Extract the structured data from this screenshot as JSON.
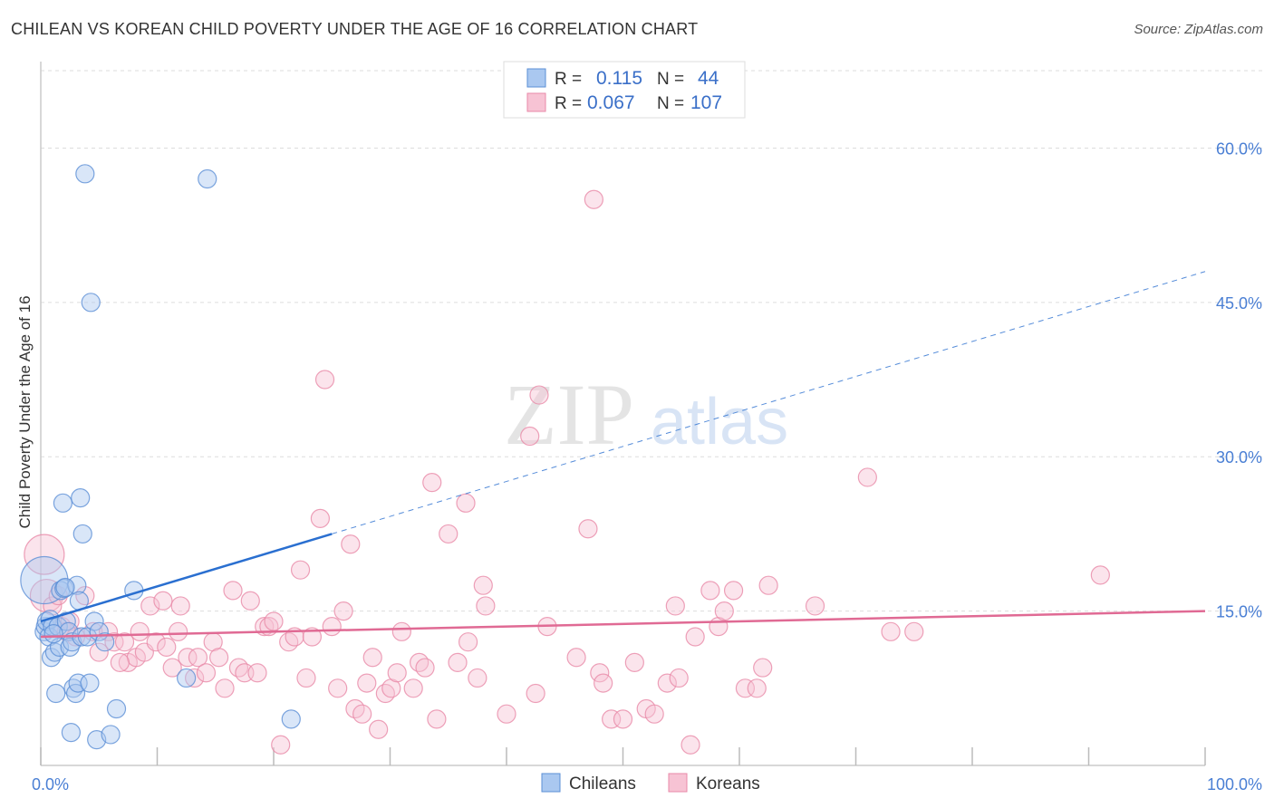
{
  "title": "CHILEAN VS KOREAN CHILD POVERTY UNDER THE AGE OF 16 CORRELATION CHART",
  "source": "Source: ZipAtlas.com",
  "watermark": {
    "left": "ZIP",
    "right": "atlas"
  },
  "colors": {
    "chileans_fill": "#aac8f0",
    "chileans_stroke": "#5b8fd6",
    "chileans_line": "#2a6fd0",
    "koreans_fill": "#f7c3d4",
    "koreans_stroke": "#e889a8",
    "koreans_line": "#e06a94",
    "grid": "#dddddd",
    "tick_label": "#4a7fd4"
  },
  "legend": {
    "rows": [
      {
        "r_label": "R =",
        "r_value": "0.115",
        "n_label": "N =",
        "n_value": "44"
      },
      {
        "r_label": "R =",
        "r_value": "0.067",
        "n_label": "N =",
        "n_value": "107"
      }
    ]
  },
  "bottom_legend": [
    "Chileans",
    "Koreans"
  ],
  "chart_data": {
    "type": "scatter",
    "title": "CHILEAN VS KOREAN CHILD POVERTY UNDER THE AGE OF 16 CORRELATION CHART",
    "xlabel": "",
    "ylabel": "Child Poverty Under the Age of 16",
    "xlim": [
      0,
      100
    ],
    "ylim": [
      0,
      64
    ],
    "x_tick_labels": [
      "0.0%",
      "100.0%"
    ],
    "y_ticks": [
      15,
      30,
      45,
      60
    ],
    "y_tick_labels": [
      "15.0%",
      "30.0%",
      "45.0%",
      "60.0%"
    ],
    "grid": "horizontal dashed",
    "legend_position": "top-center",
    "series": [
      {
        "name": "Chileans",
        "R": 0.115,
        "N": 44,
        "trend": {
          "x0": 0,
          "y0": 14.0,
          "x1": 25,
          "y1": 22.5,
          "dashed_to_x": 100,
          "dashed_to_y": 48.0
        },
        "points": [
          [
            0.3,
            18.0,
            26
          ],
          [
            0.3,
            13.0,
            10
          ],
          [
            0.4,
            13.5,
            10
          ],
          [
            0.5,
            14.0,
            10
          ],
          [
            0.7,
            12.5,
            10
          ],
          [
            0.8,
            14.2,
            10
          ],
          [
            0.9,
            10.5,
            10
          ],
          [
            1.0,
            13.5,
            10
          ],
          [
            1.2,
            11.0,
            10
          ],
          [
            1.3,
            7.0,
            10
          ],
          [
            1.5,
            13.5,
            10
          ],
          [
            1.6,
            11.5,
            10
          ],
          [
            1.7,
            17.0,
            10
          ],
          [
            1.9,
            25.5,
            10
          ],
          [
            2.0,
            17.2,
            10
          ],
          [
            2.2,
            14.0,
            10
          ],
          [
            2.4,
            13.0,
            10
          ],
          [
            2.5,
            11.5,
            10
          ],
          [
            2.6,
            3.2,
            10
          ],
          [
            2.7,
            12.0,
            10
          ],
          [
            2.8,
            7.5,
            10
          ],
          [
            3.0,
            7.0,
            10
          ],
          [
            3.1,
            17.5,
            10
          ],
          [
            3.2,
            8.0,
            10
          ],
          [
            3.3,
            16.0,
            10
          ],
          [
            3.4,
            26.0,
            10
          ],
          [
            3.5,
            12.5,
            10
          ],
          [
            3.6,
            22.5,
            10
          ],
          [
            3.8,
            57.5,
            10
          ],
          [
            4.0,
            12.5,
            10
          ],
          [
            4.2,
            8.0,
            10
          ],
          [
            4.3,
            45.0,
            10
          ],
          [
            4.6,
            14.0,
            10
          ],
          [
            4.8,
            2.5,
            10
          ],
          [
            5.0,
            13.0,
            10
          ],
          [
            5.5,
            12.0,
            10
          ],
          [
            6.0,
            3.0,
            10
          ],
          [
            6.5,
            5.5,
            10
          ],
          [
            8.0,
            17.0,
            10
          ],
          [
            12.5,
            8.5,
            10
          ],
          [
            14.3,
            57.0,
            10
          ],
          [
            21.5,
            4.5,
            10
          ],
          [
            1.1,
            12.8,
            10
          ],
          [
            2.1,
            17.3,
            10
          ]
        ]
      },
      {
        "name": "Koreans",
        "R": 0.067,
        "N": 107,
        "trend": {
          "x0": 0,
          "y0": 12.5,
          "x1": 100,
          "y1": 15.0
        },
        "points": [
          [
            0.3,
            20.5,
            22
          ],
          [
            0.5,
            16.5,
            18
          ],
          [
            1.0,
            15.5,
            10
          ],
          [
            1.5,
            16.5,
            10
          ],
          [
            1.8,
            13.5,
            10
          ],
          [
            2.5,
            14.0,
            10
          ],
          [
            3.0,
            12.5,
            10
          ],
          [
            3.8,
            16.5,
            10
          ],
          [
            4.5,
            13.0,
            10
          ],
          [
            5.0,
            11.0,
            10
          ],
          [
            5.8,
            13.0,
            10
          ],
          [
            6.3,
            12.0,
            10
          ],
          [
            7.2,
            12.0,
            10
          ],
          [
            7.5,
            10.0,
            10
          ],
          [
            8.2,
            10.5,
            10
          ],
          [
            8.5,
            13.0,
            10
          ],
          [
            8.9,
            11.0,
            10
          ],
          [
            9.4,
            15.5,
            10
          ],
          [
            9.9,
            12.0,
            10
          ],
          [
            10.5,
            16.0,
            10
          ],
          [
            10.8,
            11.5,
            10
          ],
          [
            11.3,
            9.5,
            10
          ],
          [
            11.8,
            13.0,
            10
          ],
          [
            12.0,
            15.5,
            10
          ],
          [
            12.6,
            10.5,
            10
          ],
          [
            13.2,
            8.5,
            10
          ],
          [
            13.5,
            10.5,
            10
          ],
          [
            14.2,
            9.0,
            10
          ],
          [
            14.8,
            12.0,
            10
          ],
          [
            15.3,
            10.5,
            10
          ],
          [
            15.8,
            7.5,
            10
          ],
          [
            16.5,
            17.0,
            10
          ],
          [
            17.0,
            9.5,
            10
          ],
          [
            17.5,
            9.0,
            10
          ],
          [
            18.0,
            16.0,
            10
          ],
          [
            18.6,
            9.0,
            10
          ],
          [
            19.2,
            13.5,
            10
          ],
          [
            19.6,
            13.5,
            10
          ],
          [
            20.0,
            14.0,
            10
          ],
          [
            20.6,
            2.0,
            10
          ],
          [
            21.3,
            12.0,
            10
          ],
          [
            21.8,
            12.5,
            10
          ],
          [
            22.3,
            19.0,
            10
          ],
          [
            22.8,
            8.5,
            10
          ],
          [
            23.3,
            12.5,
            10
          ],
          [
            24.0,
            24.0,
            10
          ],
          [
            24.4,
            37.5,
            10
          ],
          [
            25.0,
            13.5,
            10
          ],
          [
            25.5,
            7.5,
            10
          ],
          [
            26.0,
            15.0,
            10
          ],
          [
            26.6,
            21.5,
            10
          ],
          [
            27.0,
            5.5,
            10
          ],
          [
            27.6,
            5.0,
            10
          ],
          [
            28.0,
            8.0,
            10
          ],
          [
            28.5,
            10.5,
            10
          ],
          [
            29.0,
            3.5,
            10
          ],
          [
            29.6,
            7.0,
            10
          ],
          [
            30.1,
            7.5,
            10
          ],
          [
            30.6,
            9.0,
            10
          ],
          [
            31.0,
            13.0,
            10
          ],
          [
            32.0,
            7.5,
            10
          ],
          [
            32.5,
            10.0,
            10
          ],
          [
            33.0,
            9.5,
            10
          ],
          [
            33.6,
            27.5,
            10
          ],
          [
            34.0,
            4.5,
            10
          ],
          [
            35.0,
            22.5,
            10
          ],
          [
            35.8,
            10.0,
            10
          ],
          [
            36.5,
            25.5,
            10
          ],
          [
            36.7,
            12.0,
            10
          ],
          [
            37.5,
            8.5,
            10
          ],
          [
            38.0,
            17.5,
            10
          ],
          [
            38.2,
            15.5,
            10
          ],
          [
            40.0,
            5.0,
            10
          ],
          [
            42.0,
            32.0,
            10
          ],
          [
            42.5,
            7.0,
            10
          ],
          [
            42.8,
            36.0,
            10
          ],
          [
            43.5,
            13.5,
            10
          ],
          [
            46.0,
            10.5,
            10
          ],
          [
            47.0,
            23.0,
            10
          ],
          [
            47.5,
            55.0,
            10
          ],
          [
            48.0,
            9.0,
            10
          ],
          [
            48.3,
            8.0,
            10
          ],
          [
            49.0,
            4.5,
            10
          ],
          [
            50.0,
            4.5,
            10
          ],
          [
            51.0,
            10.0,
            10
          ],
          [
            52.0,
            5.5,
            10
          ],
          [
            52.7,
            5.0,
            10
          ],
          [
            53.8,
            8.0,
            10
          ],
          [
            54.5,
            15.5,
            10
          ],
          [
            54.8,
            8.5,
            10
          ],
          [
            55.8,
            2.0,
            10
          ],
          [
            56.2,
            12.5,
            10
          ],
          [
            57.5,
            17.0,
            10
          ],
          [
            58.2,
            13.5,
            10
          ],
          [
            58.7,
            15.0,
            10
          ],
          [
            59.5,
            17.0,
            10
          ],
          [
            60.5,
            7.5,
            10
          ],
          [
            61.5,
            7.5,
            10
          ],
          [
            62.0,
            9.5,
            10
          ],
          [
            62.5,
            17.5,
            10
          ],
          [
            66.5,
            15.5,
            10
          ],
          [
            71.0,
            28.0,
            10
          ],
          [
            73.0,
            13.0,
            10
          ],
          [
            75.0,
            13.0,
            10
          ],
          [
            91.0,
            18.5,
            10
          ],
          [
            2.2,
            13.0,
            10
          ],
          [
            6.8,
            10.0,
            10
          ]
        ]
      }
    ]
  }
}
